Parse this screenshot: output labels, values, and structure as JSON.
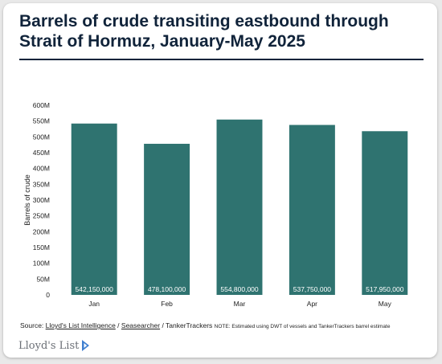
{
  "title": "Barrels of crude transiting eastbound through Strait of Hormuz, January-May 2025",
  "source": {
    "prefix": "Source: ",
    "link1": "Lloyd's List Intelligence",
    "sep1": " / ",
    "link2": "Seasearcher",
    "sep2": " / TankerTrackers ",
    "note": "NOTE: Estimated using DWT of vessels and TankerTrackers barrel estimate"
  },
  "brand": {
    "name": "Lloyd's List",
    "logo_color": "#3f7fd0"
  },
  "colors": {
    "bar": "#2f7370",
    "title": "#10233a",
    "bar_label": "#ffffff"
  },
  "chart_data": {
    "type": "bar",
    "title": "Barrels of crude transiting eastbound through Strait of Hormuz, January-May 2025",
    "xlabel": "",
    "ylabel": "Barrels of crude",
    "categories": [
      "Jan",
      "Feb",
      "Mar",
      "Apr",
      "May"
    ],
    "values": [
      542150000,
      478100000,
      554800000,
      537750000,
      517950000
    ],
    "data_labels": [
      "542,150,000",
      "478,100,000",
      "554,800,000",
      "537,750,000",
      "517,950,000"
    ],
    "ylim": [
      0,
      600000000
    ],
    "yticks": [
      0,
      50000000,
      100000000,
      150000000,
      200000000,
      250000000,
      300000000,
      350000000,
      400000000,
      450000000,
      500000000,
      550000000,
      600000000
    ],
    "ytick_labels": [
      "0",
      "50M",
      "100M",
      "150M",
      "200M",
      "250M",
      "300M",
      "350M",
      "400M",
      "450M",
      "500M",
      "550M",
      "600M"
    ],
    "grid": false,
    "legend": "none"
  }
}
